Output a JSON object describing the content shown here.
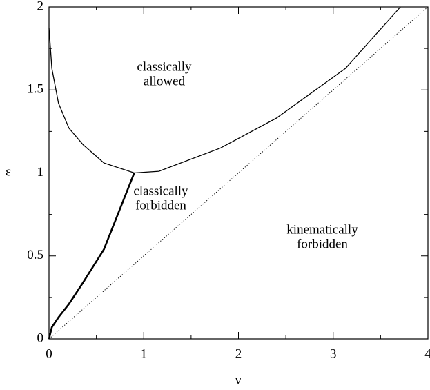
{
  "chart_data": {
    "type": "line",
    "xlabel": "ν",
    "ylabel": "ε",
    "xlim": [
      0,
      4
    ],
    "ylim": [
      0,
      2
    ],
    "xticks": [
      0,
      1,
      2,
      3,
      4
    ],
    "yticks": [
      0,
      {
        "value": 0.5,
        "label": "0.5"
      },
      1,
      {
        "value": 1.5,
        "label": "1.5"
      },
      2
    ],
    "xminorticks": [
      0.5,
      1.5,
      2.5,
      3.5
    ],
    "yminorticks": [
      0.25,
      0.75,
      1.25,
      1.75
    ],
    "series": [
      {
        "color": "#000000",
        "style": "solid",
        "width": 1.3,
        "x": [
          0,
          0.03,
          0.1,
          0.21,
          0.36,
          0.58,
          0.9,
          1.16,
          1.81,
          2.4,
          3.13,
          3.71
        ],
        "values": [
          1.875,
          1.63,
          1.42,
          1.27,
          1.17,
          1.06,
          1.0,
          1.01,
          1.15,
          1.33,
          1.63,
          2.0
        ]
      },
      {
        "color": "#000000",
        "style": "solid",
        "width": 2.6,
        "x": [
          0,
          0.03,
          0.1,
          0.21,
          0.36,
          0.58,
          0.9
        ],
        "values": [
          0,
          0.07,
          0.13,
          0.21,
          0.34,
          0.54,
          1.0
        ]
      },
      {
        "color": "#000000",
        "style": "dotted",
        "width": 1,
        "x": [
          0,
          4
        ],
        "values": [
          0,
          2
        ]
      }
    ],
    "annotations": [
      {
        "lines": [
          "classically",
          "allowed"
        ]
      },
      {
        "lines": [
          "classically",
          "forbidden"
        ]
      },
      {
        "lines": [
          "kinematically",
          "forbidden"
        ]
      }
    ]
  }
}
